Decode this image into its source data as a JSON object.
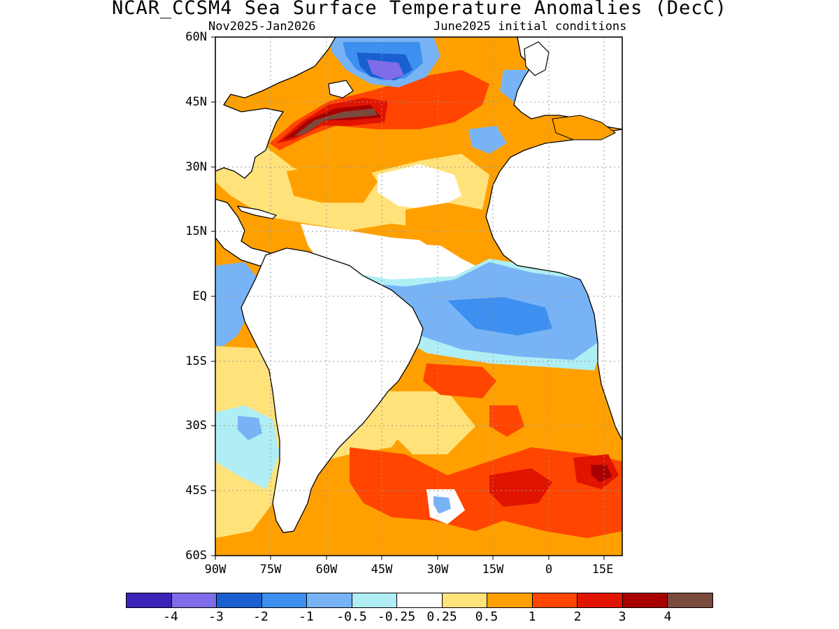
{
  "title": "NCAR_CCSM4 Sea Surface Temperature Anomalies (DecC)",
  "subtitle_left": "Nov2025-Jan2026",
  "subtitle_right": "June2025 initial conditions",
  "lat_labels": [
    "60N",
    "45N",
    "30N",
    "15N",
    "EQ",
    "15S",
    "30S",
    "45S",
    "60S"
  ],
  "lon_labels": [
    "90W",
    "75W",
    "60W",
    "45W",
    "30W",
    "15W",
    "0",
    "15E"
  ],
  "colorbar": {
    "colors": [
      "#3a23b6",
      "#7f6ce8",
      "#1a5fd1",
      "#3d8ff0",
      "#78b4f5",
      "#b0eef5",
      "#ffffff",
      "#ffe27a",
      "#ffa000",
      "#ff4500",
      "#e01400",
      "#a80000",
      "#7a4a3c"
    ],
    "labels": [
      "-4",
      "-3",
      "-2",
      "-1",
      "-0.5",
      "-0.25",
      "0.25",
      "0.5",
      "1",
      "2",
      "3",
      "4"
    ]
  },
  "map": {
    "region": "Atlantic Ocean",
    "lat_range": [
      -60,
      60
    ],
    "lon_range": [
      -90,
      20
    ],
    "background_anomaly_class": "0.5 to 1",
    "anomaly_regions": [
      {
        "name": "Gulf Stream warm core",
        "class": "3 to 4+"
      },
      {
        "name": "North Atlantic warm band",
        "class": "1 to 2"
      },
      {
        "name": "Labrador cold anomaly",
        "class": "-2 to -4"
      },
      {
        "name": "Equatorial Atlantic cold tongue",
        "class": "-0.5 to -1"
      },
      {
        "name": "South Atlantic warm anomaly",
        "class": "1 to 3"
      }
    ]
  }
}
